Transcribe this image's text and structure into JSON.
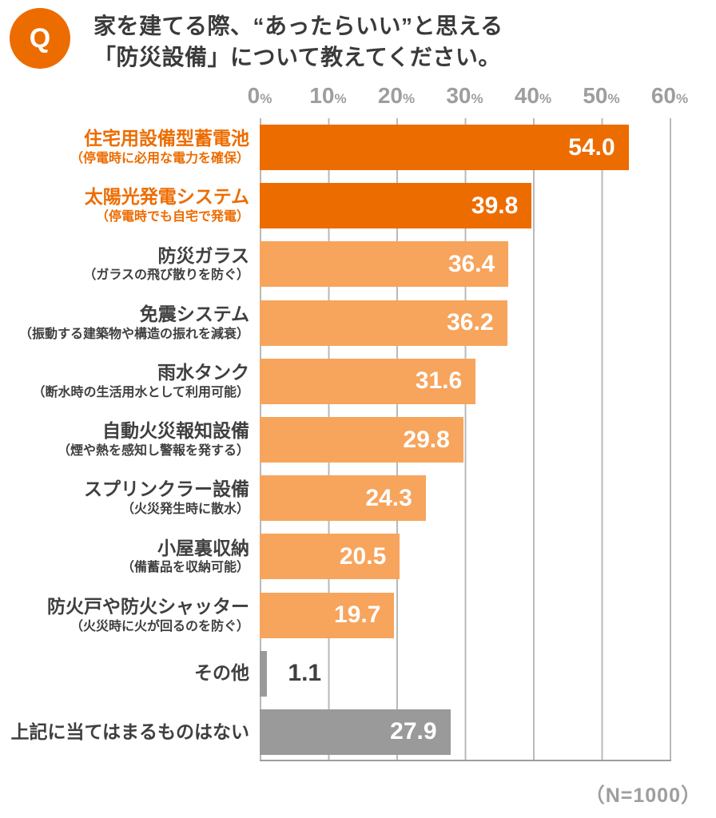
{
  "question_badge": "Q",
  "title_line1": "家を建てる際、“あったらいい”と思える",
  "title_line2": "「防災設備」について教えてください。",
  "sample_note": "（N=1000）",
  "colors": {
    "dark_orange": "#ED6C00",
    "light_orange": "#F7A45C",
    "gray_bar": "#9A9A9A",
    "label_dark": "#3F3F3F",
    "axis_gray": "#9E9E9E",
    "grid_line": "#B9B9B9"
  },
  "chart_data": {
    "type": "bar",
    "orientation": "horizontal",
    "title": "家を建てる際、“あったらいい”と思える「防災設備」について教えてください。",
    "categories": [
      "住宅用設備型蓄電池",
      "太陽光発電システム",
      "防災ガラス",
      "免震システム",
      "雨水タンク",
      "自動火災報知設備",
      "スプリンクラー設備",
      "小屋裏収納",
      "防火戸や防火シャッター",
      "その他",
      "上記に当てはまるものはない"
    ],
    "values": [
      54.0,
      39.8,
      36.4,
      36.2,
      31.6,
      29.8,
      24.3,
      20.5,
      19.7,
      1.1,
      27.9
    ],
    "value_axis_ticks": [
      "0",
      "10",
      "20",
      "30",
      "40",
      "50",
      "60"
    ],
    "value_axis_suffix": "%",
    "xlim": [
      0,
      60
    ],
    "grid": true,
    "legend": "none",
    "sample_size": "（N=1000）",
    "items": [
      {
        "label": "住宅用設備型蓄電池",
        "sublabel": "（停電時に必用な電力を確保）",
        "value": 54.0,
        "display": "54.0",
        "bar_color": "dark_orange",
        "label_style": "orange",
        "value_outside": false
      },
      {
        "label": "太陽光発電システム",
        "sublabel": "（停電時でも自宅で発電）",
        "value": 39.8,
        "display": "39.8",
        "bar_color": "dark_orange",
        "label_style": "orange",
        "value_outside": false
      },
      {
        "label": "防災ガラス",
        "sublabel": "（ガラスの飛び散りを防ぐ）",
        "value": 36.4,
        "display": "36.4",
        "bar_color": "light_orange",
        "label_style": "dark",
        "value_outside": false
      },
      {
        "label": "免震システム",
        "sublabel": "（振動する建築物や構造の振れを減衰）",
        "value": 36.2,
        "display": "36.2",
        "bar_color": "light_orange",
        "label_style": "dark",
        "value_outside": false
      },
      {
        "label": "雨水タンク",
        "sublabel": "（断水時の生活用水として利用可能）",
        "value": 31.6,
        "display": "31.6",
        "bar_color": "light_orange",
        "label_style": "dark",
        "value_outside": false
      },
      {
        "label": "自動火災報知設備",
        "sublabel": "（煙や熱を感知し警報を発する）",
        "value": 29.8,
        "display": "29.8",
        "bar_color": "light_orange",
        "label_style": "dark",
        "value_outside": false
      },
      {
        "label": "スプリンクラー設備",
        "sublabel": "（火災発生時に散水）",
        "value": 24.3,
        "display": "24.3",
        "bar_color": "light_orange",
        "label_style": "dark",
        "value_outside": false
      },
      {
        "label": "小屋裏収納",
        "sublabel": "（備蓄品を収納可能）",
        "value": 20.5,
        "display": "20.5",
        "bar_color": "light_orange",
        "label_style": "dark",
        "value_outside": false
      },
      {
        "label": "防火戸や防火シャッター",
        "sublabel": "（火災時に火が回るのを防ぐ）",
        "value": 19.7,
        "display": "19.7",
        "bar_color": "light_orange",
        "label_style": "dark",
        "value_outside": false
      },
      {
        "label": "その他",
        "sublabel": "",
        "value": 1.1,
        "display": "1.1",
        "bar_color": "gray_bar",
        "label_style": "dark",
        "value_outside": true
      },
      {
        "label": "上記に当てはまるものはない",
        "sublabel": "",
        "value": 27.9,
        "display": "27.9",
        "bar_color": "gray_bar",
        "label_style": "dark",
        "value_outside": false
      }
    ]
  }
}
